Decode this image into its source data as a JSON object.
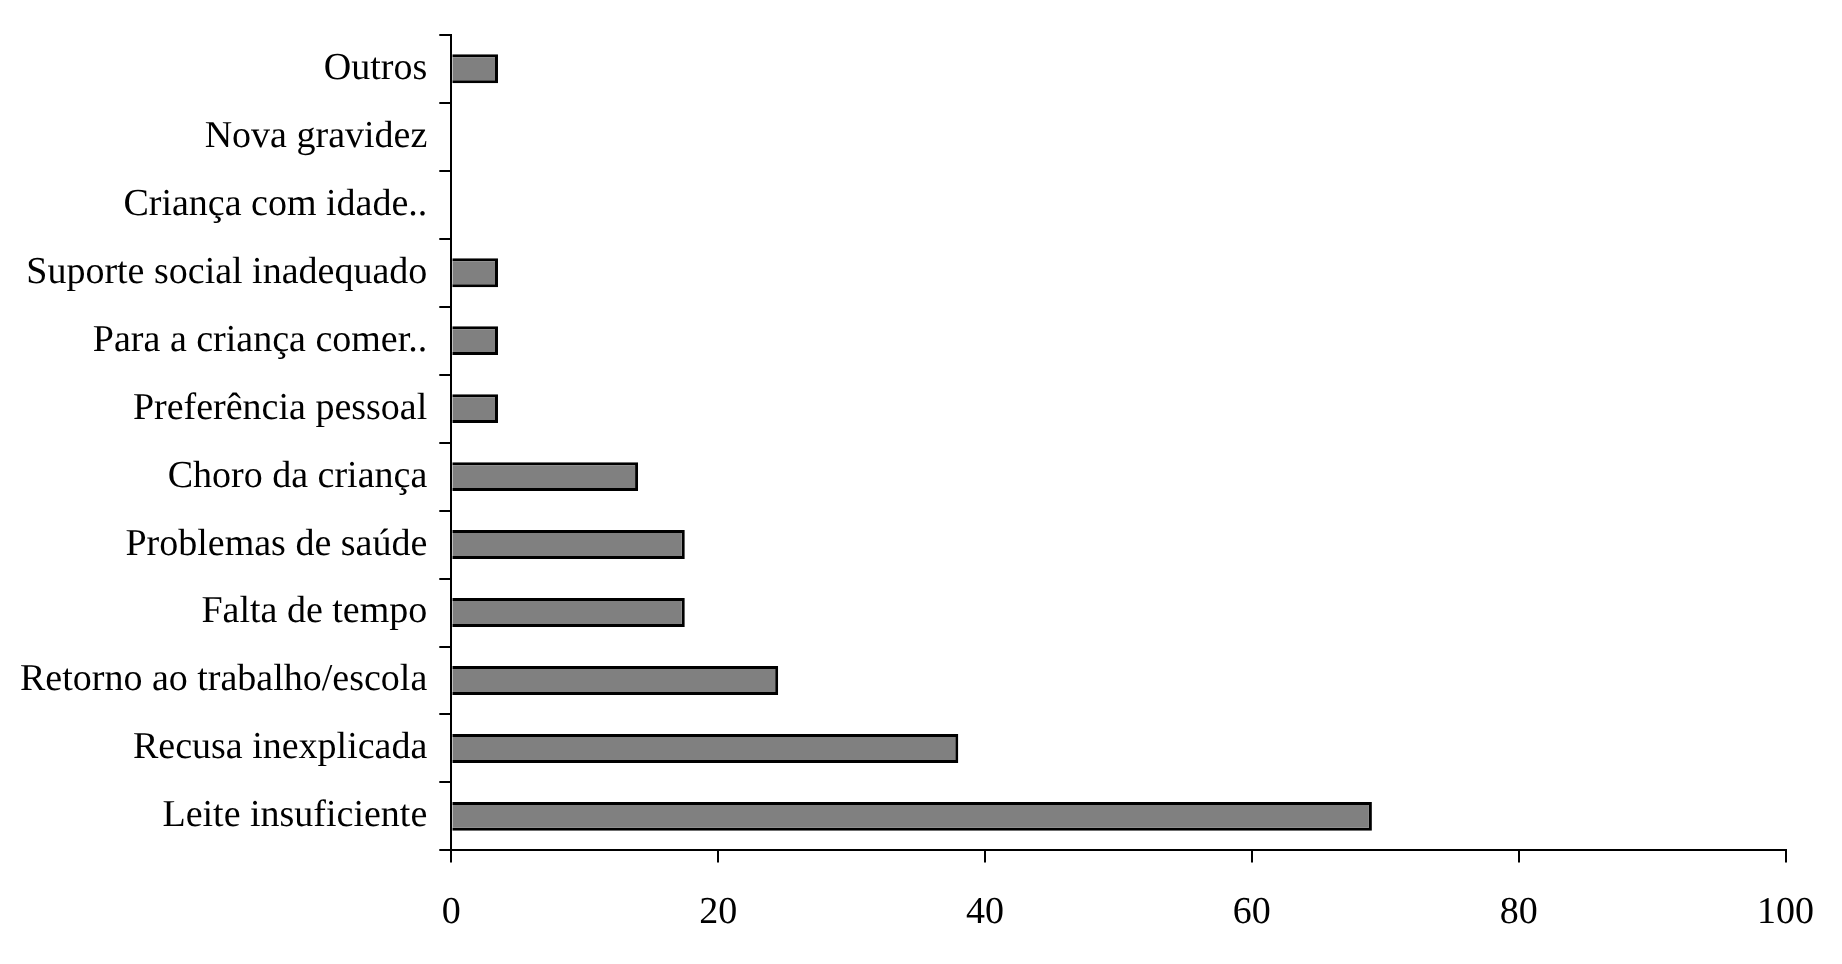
{
  "chart_data": {
    "type": "bar",
    "orientation": "horizontal",
    "categories": [
      "Outros",
      "Nova gravidez",
      "Criança com idade..",
      "Suporte social inadequado",
      "Para a criança comer..",
      "Preferência pessoal",
      "Choro da criança",
      "Problemas de saúde",
      "Falta de tempo",
      "Retorno ao trabalho/escola",
      "Recusa inexplicada",
      "Leite insuficiente"
    ],
    "values": [
      3.5,
      0,
      0,
      3.5,
      3.5,
      3.5,
      14,
      17.5,
      17.5,
      24.5,
      38,
      69
    ],
    "color": "#808080",
    "xlim": [
      0,
      100
    ],
    "xticks": [
      0,
      20,
      40,
      60,
      80,
      100
    ],
    "grid": false,
    "legend": false
  }
}
